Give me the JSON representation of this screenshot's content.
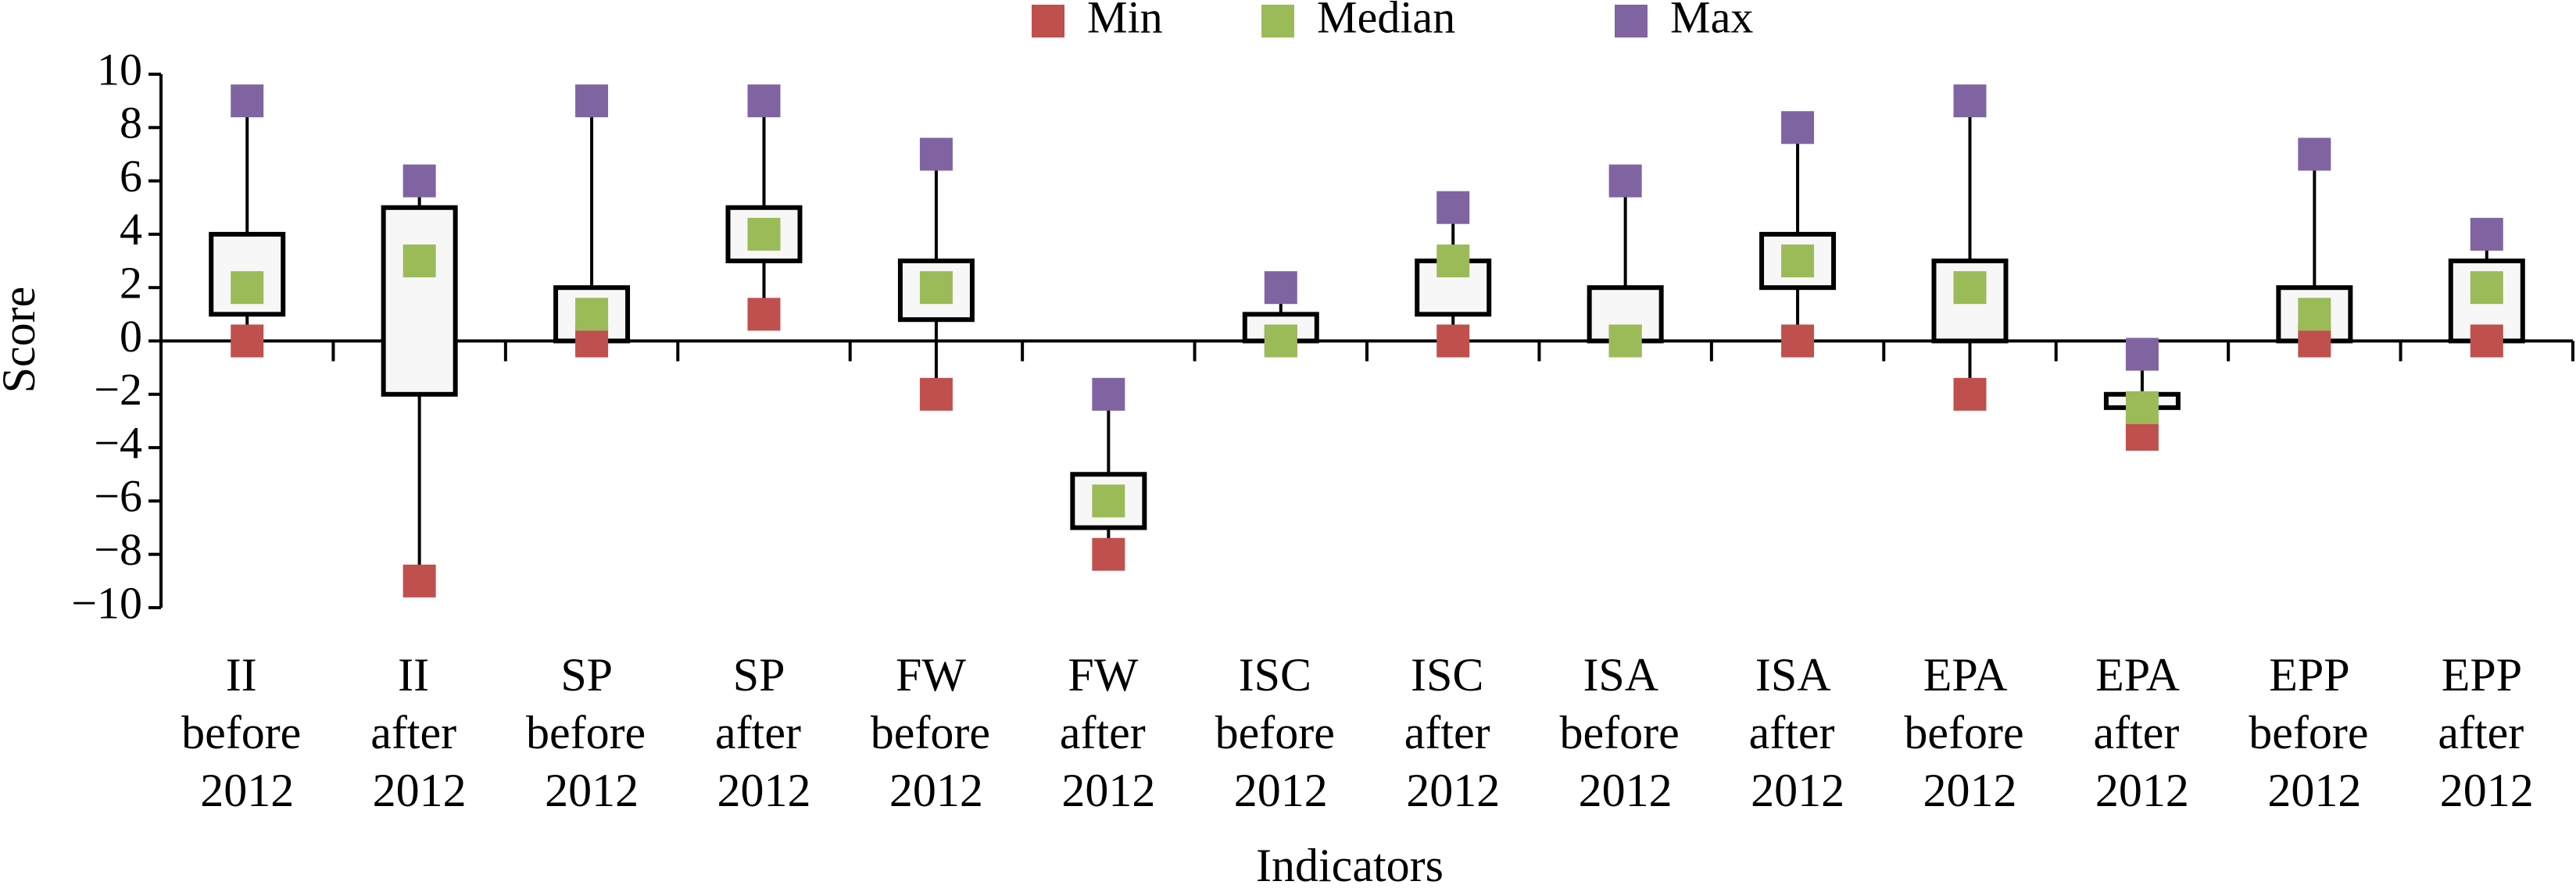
{
  "chart_data": {
    "type": "box",
    "categories": [
      "II before 2012",
      "II after 2012",
      "SP before 2012",
      "SP after 2012",
      "FW before 2012",
      "FW after 2012",
      "ISC before 2012",
      "ISC after 2012",
      "ISA before 2012",
      "ISA after 2012",
      "EPA before 2012",
      "EPA after 2012",
      "EPP before 2012",
      "EPP after 2012"
    ],
    "series": [
      {
        "name": "Min",
        "color": "#c0504d",
        "values": [
          0,
          -9,
          0,
          1,
          -2,
          -8,
          0,
          0,
          0,
          0,
          -2,
          -3.5,
          0,
          0
        ]
      },
      {
        "name": "Median",
        "color": "#9bbb59",
        "values": [
          2,
          3,
          1,
          4,
          2,
          -6,
          0,
          3,
          0,
          3,
          2,
          -2.5,
          1,
          2
        ]
      },
      {
        "name": "Max",
        "color": "#8064a2",
        "values": [
          9,
          6,
          9,
          9,
          7,
          -2,
          2,
          5,
          6,
          8,
          9,
          -0.5,
          7,
          4
        ]
      }
    ],
    "box_low": [
      1,
      -2,
      0,
      3,
      0.8,
      -7,
      0,
      1,
      0,
      2,
      0,
      -2.5,
      0,
      0
    ],
    "box_high": [
      4,
      5,
      2,
      5,
      3,
      -5,
      1,
      3,
      2,
      4,
      3,
      -2,
      2,
      3
    ],
    "xlabel": "Indicators",
    "ylabel": "Score",
    "ylim": [
      -10,
      10
    ],
    "yticks": [
      {
        "value": -10,
        "label": "−10"
      },
      {
        "value": -8,
        "label": "−8"
      },
      {
        "value": -6,
        "label": "−6"
      },
      {
        "value": -4,
        "label": "−4"
      },
      {
        "value": -2,
        "label": "−2"
      },
      0,
      2,
      4,
      6,
      8,
      10
    ],
    "legend": "top"
  }
}
